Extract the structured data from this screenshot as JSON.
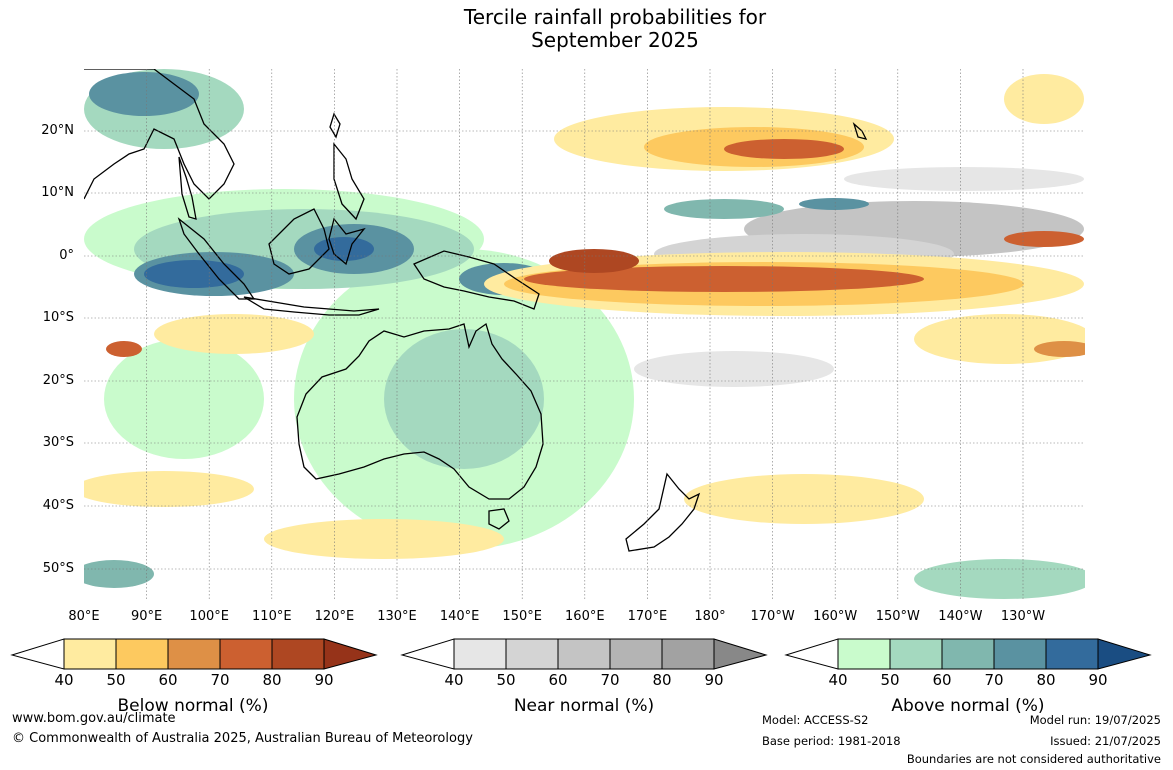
{
  "header": {
    "title_line1": "Tercile rainfall probabilities for",
    "title_line2": "September 2025"
  },
  "map": {
    "lat_labels": [
      "20°N",
      "10°N",
      "0°",
      "10°S",
      "20°S",
      "30°S",
      "40°S",
      "50°S"
    ],
    "lon_labels": [
      "80°E",
      "90°E",
      "100°E",
      "110°E",
      "120°E",
      "130°E",
      "140°E",
      "150°E",
      "160°E",
      "170°E",
      "180°",
      "170°W",
      "160°W",
      "150°W",
      "140°W",
      "130°W"
    ]
  },
  "colorbars": [
    {
      "label": "Below normal (%)",
      "ticks": [
        "40",
        "50",
        "60",
        "70",
        "80",
        "90"
      ],
      "colors": [
        "#ffffff",
        "#ffeba0",
        "#fdc95f",
        "#de9046",
        "#cc6030",
        "#ae4722",
        "#963319"
      ]
    },
    {
      "label": "Near normal (%)",
      "ticks": [
        "40",
        "50",
        "60",
        "70",
        "80",
        "90"
      ],
      "colors": [
        "#ffffff",
        "#e6e6e6",
        "#d4d4d4",
        "#c4c4c4",
        "#b4b4b4",
        "#a2a2a2",
        "#888888"
      ]
    },
    {
      "label": "Above normal (%)",
      "ticks": [
        "40",
        "50",
        "60",
        "70",
        "80",
        "90"
      ],
      "colors": [
        "#ffffff",
        "#c9fbcc",
        "#a4d9bf",
        "#80b7ae",
        "#5a92a1",
        "#336b9c",
        "#1a4d82"
      ]
    }
  ],
  "footer": {
    "website": "www.bom.gov.au/climate",
    "copyright": "© Commonwealth of Australia 2025, Australian Bureau of Meteorology",
    "model": "Model: ACCESS-S2",
    "base_period": "Base period: 1981-2018",
    "model_run": "Model run: 19/07/2025",
    "issued": "Issued: 21/07/2025",
    "disclaimer": "Boundaries are not considered authoritative"
  }
}
